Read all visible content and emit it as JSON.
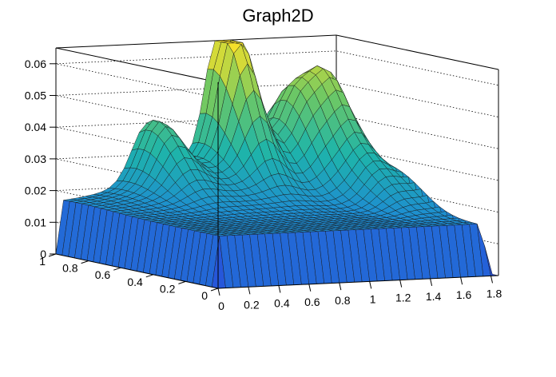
{
  "chart_data": {
    "type": "surface",
    "title": "Graph2D",
    "xlabel": "",
    "ylabel": "",
    "zlabel": "",
    "xlim": [
      0,
      1.85
    ],
    "ylim": [
      0,
      1.0
    ],
    "zlim": [
      0,
      0.065
    ],
    "x_ticks": [
      "0",
      "0.2",
      "0.4",
      "0.6",
      "0.8",
      "1",
      "1.2",
      "1.4",
      "1.6",
      "1.8"
    ],
    "y_ticks": [
      "0",
      "0.2",
      "0.4",
      "0.6",
      "0.8",
      "1"
    ],
    "z_ticks": [
      "0",
      "0.01",
      "0.02",
      "0.03",
      "0.04",
      "0.05",
      "0.06"
    ],
    "colormap": "viridis-like (blue to yellow)",
    "peaks": [
      {
        "x": 1.1,
        "y": 0.99,
        "z": 0.065
      },
      {
        "x": 1.65,
        "y": 0.88,
        "z": 0.048
      },
      {
        "x": 1.45,
        "y": 0.9,
        "z": 0.04
      },
      {
        "x": 0.6,
        "y": 0.95,
        "z": 0.034
      },
      {
        "x": 1.6,
        "y": 0.55,
        "z": 0.026
      },
      {
        "x": 1.82,
        "y": 0.5,
        "z": 0.025
      }
    ],
    "base_level": 0.016,
    "grid": true
  }
}
